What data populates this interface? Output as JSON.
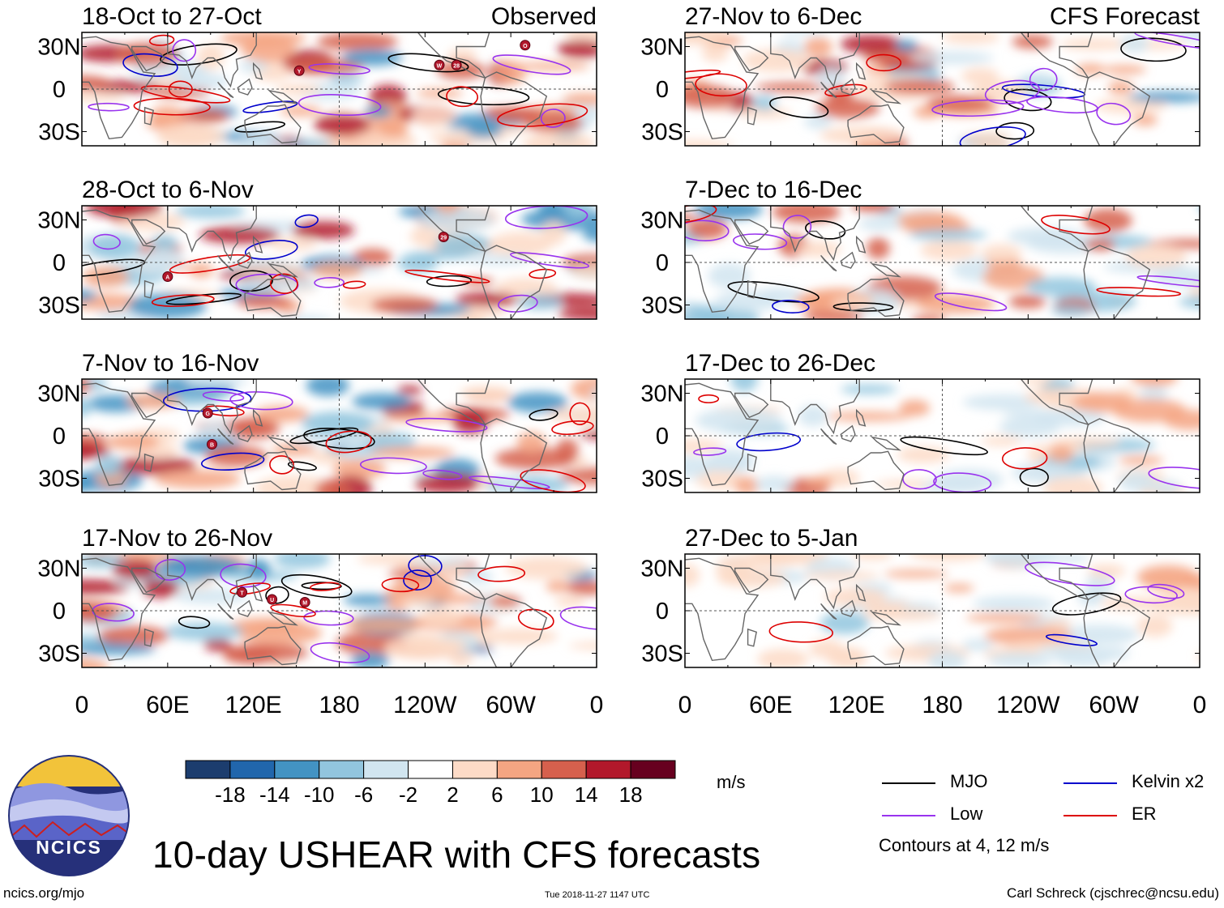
{
  "chart_data": {
    "type": "heatmap",
    "title": "10-day USHEAR with CFS forecasts",
    "variable": "USHEAR",
    "units": "m/s",
    "x_ticks": [
      "0",
      "60E",
      "120E",
      "180",
      "120W",
      "60W",
      "0"
    ],
    "y_ticks": [
      "30N",
      "0",
      "30S"
    ],
    "xlim": [
      0,
      360
    ],
    "ylim": [
      -40,
      40
    ],
    "columns": [
      {
        "label": "Observed",
        "panels": [
          {
            "period": "18-Oct to 27-Oct",
            "tc_labels": [
              "Y",
              "W",
              "28",
              "O"
            ]
          },
          {
            "period": "28-Oct to 6-Nov",
            "tc_labels": [
              "A",
              "29"
            ]
          },
          {
            "period": "7-Nov to 16-Nov",
            "tc_labels": [
              "G",
              "B"
            ]
          },
          {
            "period": "17-Nov to 26-Nov",
            "tc_labels": [
              "T",
              "U",
              "M"
            ]
          }
        ]
      },
      {
        "label": "CFS Forecast",
        "panels": [
          {
            "period": "27-Nov to 6-Dec",
            "tc_labels": []
          },
          {
            "period": "7-Dec to 16-Dec",
            "tc_labels": []
          },
          {
            "period": "17-Dec to 26-Dec",
            "tc_labels": []
          },
          {
            "period": "27-Dec to 5-Jan",
            "tc_labels": []
          }
        ]
      }
    ],
    "colorbar": {
      "ticks": [
        "-18",
        "-14",
        "-10",
        "-6",
        "-2",
        "2",
        "6",
        "10",
        "14",
        "18"
      ],
      "colors": [
        "#1c3d6e",
        "#2166ac",
        "#4393c3",
        "#92c5de",
        "#d1e5f0",
        "#ffffff",
        "#fddbc7",
        "#f4a582",
        "#d6604d",
        "#b2182b",
        "#67001f"
      ]
    },
    "contours": {
      "note": "Contours at 4, 12 m/s",
      "legend": [
        {
          "name": "MJO",
          "color": "#000000"
        },
        {
          "name": "Kelvin x2",
          "color": "#0000cc"
        },
        {
          "name": "Low",
          "color": "#9933ee"
        },
        {
          "name": "ER",
          "color": "#dd0000"
        }
      ]
    }
  },
  "footer": {
    "website": "ncics.org/mjo",
    "timestamp": "Tue 2018-11-27 1147 UTC",
    "credit": "Carl Schreck (cjschrec@ncsu.edu)"
  },
  "logo": {
    "text": "NCICS"
  }
}
